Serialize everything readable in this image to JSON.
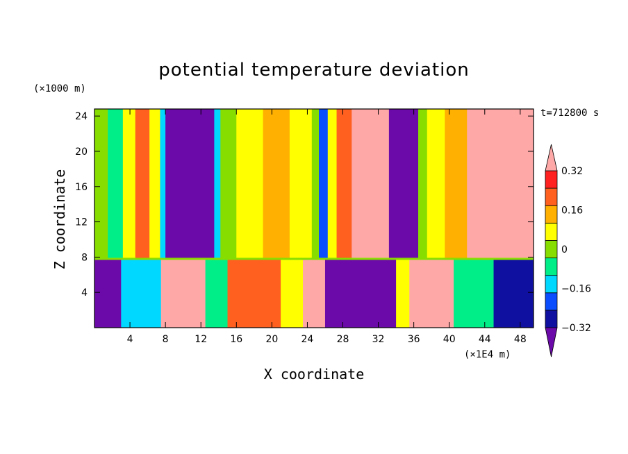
{
  "chart_data": {
    "type": "heatmap",
    "title": "potential temperature deviation",
    "xlabel": "X coordinate",
    "ylabel": "Z coordinate",
    "x_unit": "(×1E4 m)",
    "z_unit": "(×1000 m)",
    "time_label": "t=712800 s",
    "xlim": [
      0,
      49.5
    ],
    "ylim": [
      0,
      24.8
    ],
    "x_ticks": [
      4,
      8,
      12,
      16,
      20,
      24,
      28,
      32,
      36,
      40,
      44,
      48
    ],
    "y_ticks": [
      4,
      8,
      12,
      16,
      20,
      24
    ],
    "colorbar": {
      "labels": [
        "0.32",
        "0.16",
        "0",
        "−0.16",
        "−0.32"
      ],
      "label_values": [
        0.32,
        0.16,
        0,
        -0.16,
        -0.32
      ],
      "levels": [
        -0.4,
        -0.32,
        -0.24,
        -0.16,
        -0.08,
        0,
        0.08,
        0.16,
        0.24,
        0.32,
        0.4
      ],
      "colors": [
        "#6b0aa8",
        "#1010a0",
        "#0a4dff",
        "#00d8ff",
        "#00ee88",
        "#88dd00",
        "#ffff00",
        "#ffb000",
        "#ff6020",
        "#ff2020",
        "#ffa8a8"
      ]
    },
    "upper_columns": [
      {
        "x0": 0,
        "x1": 1.5,
        "value": 0.05
      },
      {
        "x0": 1.5,
        "x1": 3.2,
        "value": -0.04
      },
      {
        "x0": 3.2,
        "x1": 4.6,
        "value": 0.1
      },
      {
        "x0": 4.6,
        "x1": 6.2,
        "value": 0.27
      },
      {
        "x0": 6.2,
        "x1": 7.4,
        "value": 0.12
      },
      {
        "x0": 7.4,
        "x1": 8.0,
        "value": -0.12
      },
      {
        "x0": 8.0,
        "x1": 13.5,
        "value": -0.4
      },
      {
        "x0": 13.5,
        "x1": 14.2,
        "value": -0.12
      },
      {
        "x0": 14.2,
        "x1": 16.0,
        "value": 0.05
      },
      {
        "x0": 16.0,
        "x1": 19.0,
        "value": 0.14
      },
      {
        "x0": 19.0,
        "x1": 22.0,
        "value": 0.2
      },
      {
        "x0": 22.0,
        "x1": 24.5,
        "value": 0.12
      },
      {
        "x0": 24.5,
        "x1": 25.3,
        "value": 0.02
      },
      {
        "x0": 25.3,
        "x1": 26.3,
        "value": -0.2
      },
      {
        "x0": 26.3,
        "x1": 27.3,
        "value": 0.1
      },
      {
        "x0": 27.3,
        "x1": 29.0,
        "value": 0.28
      },
      {
        "x0": 29.0,
        "x1": 31.5,
        "value": 0.4
      },
      {
        "x0": 31.5,
        "x1": 33.2,
        "value": 0.32
      },
      {
        "x0": 33.2,
        "x1": 36.5,
        "value": -0.4
      },
      {
        "x0": 36.5,
        "x1": 37.5,
        "value": 0.05
      },
      {
        "x0": 37.5,
        "x1": 39.5,
        "value": 0.15
      },
      {
        "x0": 39.5,
        "x1": 42.0,
        "value": 0.22
      },
      {
        "x0": 42.0,
        "x1": 43.5,
        "value": 0.32
      },
      {
        "x0": 43.5,
        "x1": 49.5,
        "value": 0.4
      }
    ],
    "lower_columns": [
      {
        "x0": 0,
        "x1": 3.0,
        "value": -0.4
      },
      {
        "x0": 3.0,
        "x1": 7.5,
        "value": -0.1
      },
      {
        "x0": 7.5,
        "x1": 12.5,
        "value": 0.36
      },
      {
        "x0": 12.5,
        "x1": 15.0,
        "value": -0.05
      },
      {
        "x0": 15.0,
        "x1": 21.0,
        "value": 0.3
      },
      {
        "x0": 21.0,
        "x1": 23.5,
        "value": 0.15
      },
      {
        "x0": 23.5,
        "x1": 26.0,
        "value": 0.38
      },
      {
        "x0": 26.0,
        "x1": 34.0,
        "value": -0.4
      },
      {
        "x0": 34.0,
        "x1": 35.5,
        "value": 0.1
      },
      {
        "x0": 35.5,
        "x1": 40.5,
        "value": 0.4
      },
      {
        "x0": 40.5,
        "x1": 45.0,
        "value": -0.05
      },
      {
        "x0": 45.0,
        "x1": 49.5,
        "value": -0.3
      }
    ],
    "inversion_height": 7.8
  }
}
